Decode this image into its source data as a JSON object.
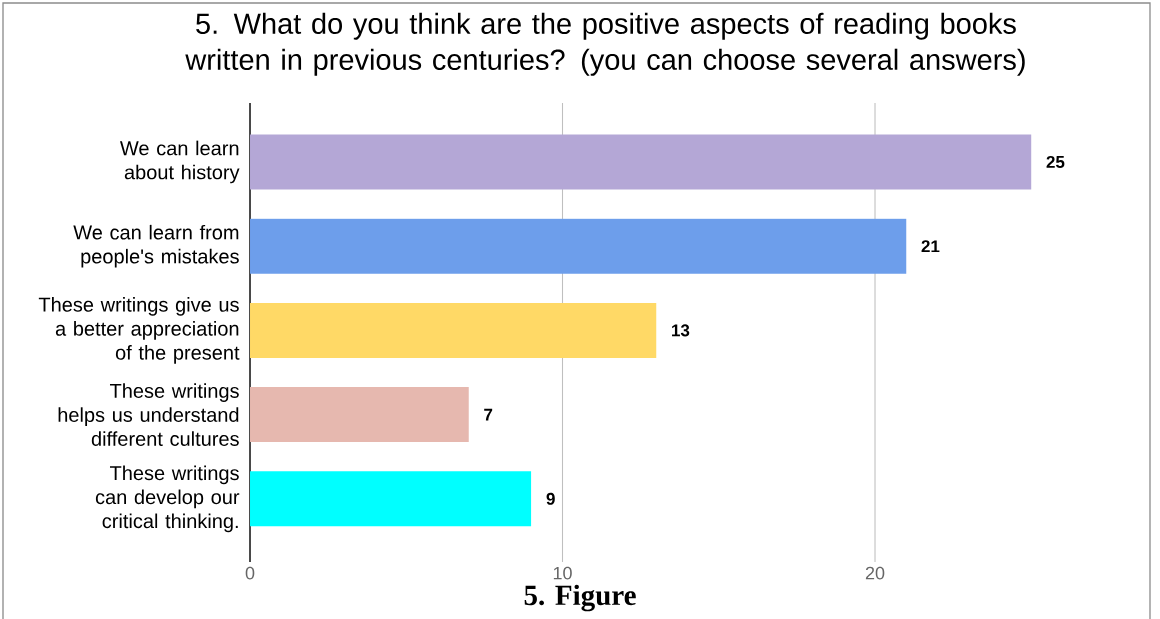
{
  "chart_data": {
    "type": "bar",
    "orientation": "horizontal",
    "title": "5. What do you think are the positive aspects of reading books written in previous centuries? (you can choose several answers)",
    "categories": [
      "We can learn about history",
      "We can learn from people's mistakes",
      "These writings give us a better appreciation of the present",
      "These writings helps us understand different cultures",
      "These writings can develop our critical thinking."
    ],
    "values": [
      25,
      21,
      13,
      7,
      9
    ],
    "colors": [
      "#b4a7d6",
      "#6d9eeb",
      "#ffd966",
      "#e6b8af",
      "#00ffff"
    ],
    "xlim": [
      0,
      28.8
    ],
    "xticks": [
      0,
      10,
      20
    ],
    "grid": "x",
    "data_labels": true,
    "annotations": [
      "5. Figure"
    ]
  }
}
